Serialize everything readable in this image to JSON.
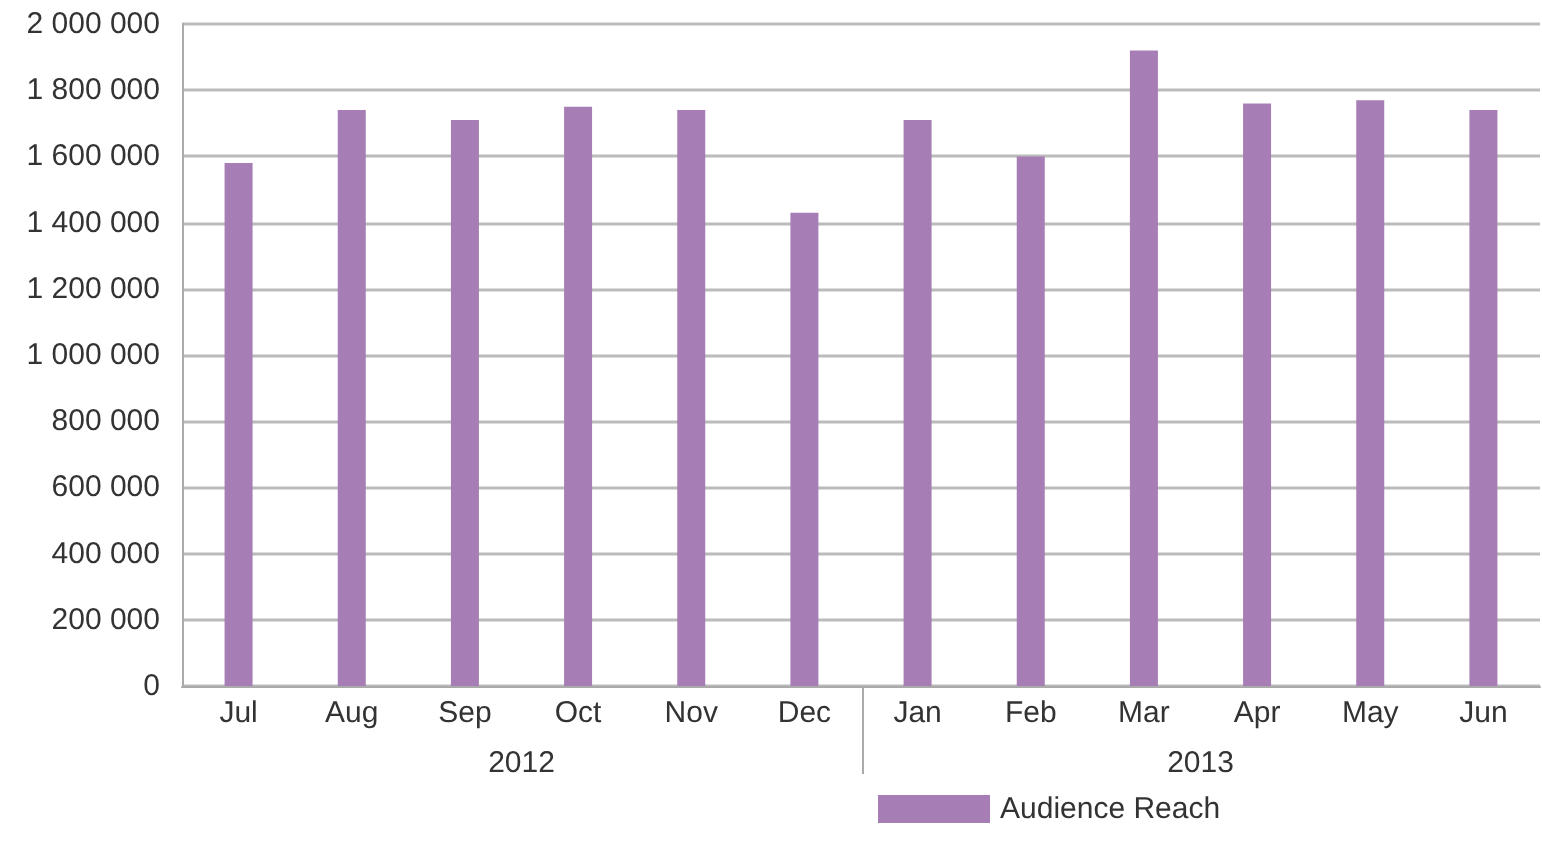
{
  "chart_data": {
    "type": "bar",
    "categories": [
      "Jul",
      "Aug",
      "Sep",
      "Oct",
      "Nov",
      "Dec",
      "Jan",
      "Feb",
      "Mar",
      "Apr",
      "May",
      "Jun"
    ],
    "series": [
      {
        "name": "Audience Reach",
        "color": "#a77db5",
        "values": [
          1580000,
          1740000,
          1710000,
          1750000,
          1740000,
          1430000,
          1710000,
          1600000,
          1920000,
          1760000,
          1770000,
          1740000
        ]
      }
    ],
    "ylim": [
      0,
      2000000
    ],
    "yticks": [
      0,
      {
        "value": 200000,
        "label": "200 000"
      },
      {
        "value": 400000,
        "label": "400 000"
      },
      {
        "value": 600000,
        "label": "600 000"
      },
      {
        "value": 800000,
        "label": "800 000"
      },
      {
        "value": 1000000,
        "label": "1 000 000"
      },
      {
        "value": 1200000,
        "label": "1 200 000"
      },
      {
        "value": 1400000,
        "label": "1 400 000"
      },
      {
        "value": 1600000,
        "label": "1 600 000"
      },
      {
        "value": 1800000,
        "label": "1 800 000"
      },
      {
        "value": 2000000,
        "label": "2 000 000"
      }
    ],
    "annotations": [
      "2012",
      "2013"
    ],
    "grid": "y",
    "legend": "bottom right"
  }
}
